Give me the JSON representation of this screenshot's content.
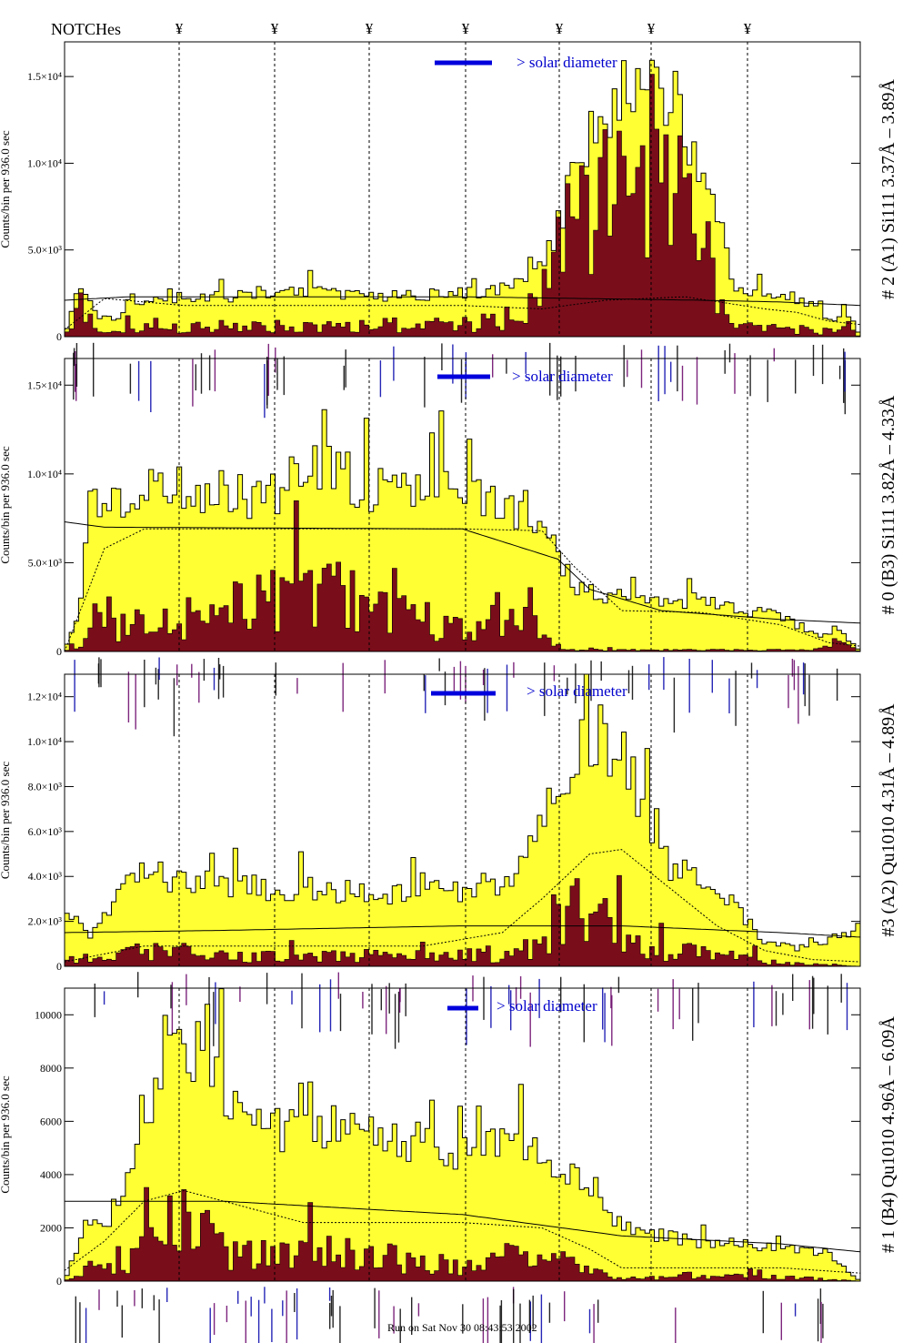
{
  "header": {
    "notches_label": "NOTCHes",
    "notch_symbol": "¥"
  },
  "footer": {
    "run_text": "Run on Sat Nov 30 08:43:53 2002"
  },
  "style": {
    "fill_total": "#ffff33",
    "fill_subset": "#7a0d1a",
    "solar_bar": "#0000dd",
    "solar_text": "#0000cc",
    "annotation_dark": "#000000",
    "annotation_blue": "#0000aa",
    "annotation_purple": "#660066"
  },
  "chart_data": [
    {
      "type": "area",
      "ylabel": "Counts/bin per 936.0 sec",
      "side_label": "# 2 (A1) Si111 3.37Å – 3.89Å",
      "solar_label": "> solar diameter",
      "ylim": [
        0,
        17000
      ],
      "ytick_values": [
        0,
        5000,
        10000,
        15000
      ],
      "ytick_labels": [
        "0",
        "5.0×10³",
        "1.0×10⁴",
        "1.5×10⁴"
      ],
      "series": [
        {
          "knots": [
            [
              0,
              0
            ],
            [
              2,
              3000
            ],
            [
              4,
              1200
            ],
            [
              7,
              900
            ],
            [
              8,
              2200
            ],
            [
              20,
              2300
            ],
            [
              30,
              2600
            ],
            [
              40,
              2400
            ],
            [
              48,
              2500
            ],
            [
              55,
              2800
            ],
            [
              60,
              4000
            ],
            [
              63,
              8000
            ],
            [
              66,
              12000
            ],
            [
              70,
              14000
            ],
            [
              74,
              14200
            ],
            [
              78,
              12500
            ],
            [
              82,
              8000
            ],
            [
              84,
              2600
            ],
            [
              88,
              2500
            ],
            [
              93,
              2200
            ],
            [
              97,
              800
            ],
            [
              98,
              1800
            ],
            [
              100,
              0
            ]
          ]
        },
        {
          "knots": [
            [
              0,
              0
            ],
            [
              2,
              2000
            ],
            [
              4,
              400
            ],
            [
              7,
              300
            ],
            [
              8,
              600
            ],
            [
              30,
              800
            ],
            [
              50,
              900
            ],
            [
              56,
              1200
            ],
            [
              58,
              2000
            ],
            [
              62,
              7000
            ],
            [
              66,
              10500
            ],
            [
              70,
              11500
            ],
            [
              74,
              11000
            ],
            [
              78,
              9000
            ],
            [
              82,
              4000
            ],
            [
              84,
              700
            ],
            [
              94,
              500
            ],
            [
              97,
              300
            ],
            [
              98,
              1000
            ],
            [
              100,
              0
            ]
          ]
        },
        {
          "knots": [
            [
              0,
              400
            ],
            [
              5,
              2200
            ],
            [
              15,
              1800
            ],
            [
              30,
              1800
            ],
            [
              50,
              1800
            ],
            [
              60,
              1600
            ],
            [
              68,
              2100
            ],
            [
              78,
              2300
            ],
            [
              88,
              1600
            ],
            [
              92,
              1400
            ],
            [
              96,
              900
            ],
            [
              100,
              700
            ]
          ]
        },
        {
          "knots": [
            [
              0,
              2100
            ],
            [
              8,
              2300
            ],
            [
              20,
              2300
            ],
            [
              50,
              2300
            ],
            [
              80,
              2100
            ],
            [
              90,
              2000
            ],
            [
              100,
              1800
            ]
          ]
        }
      ]
    },
    {
      "type": "area",
      "ylabel": "Counts/bin per 936.0 sec",
      "side_label": "# 0 (B3) Si111 3.82Å – 4.33Å",
      "solar_label": "> solar diameter",
      "ylim": [
        0,
        16500
      ],
      "ytick_values": [
        0,
        5000,
        10000,
        15000
      ],
      "ytick_labels": [
        "0",
        "5.0×10³",
        "1.0×10⁴",
        "1.5×10⁴"
      ],
      "series": [
        {
          "knots": [
            [
              0,
              0
            ],
            [
              2,
              2500
            ],
            [
              3,
              9000
            ],
            [
              5,
              8000
            ],
            [
              12,
              9500
            ],
            [
              25,
              9000
            ],
            [
              33,
              10500
            ],
            [
              40,
              9000
            ],
            [
              45,
              9500
            ],
            [
              50,
              9000
            ],
            [
              55,
              8500
            ],
            [
              60,
              7800
            ],
            [
              64,
              3500
            ],
            [
              70,
              3200
            ],
            [
              80,
              2800
            ],
            [
              90,
              2000
            ],
            [
              95,
              800
            ],
            [
              97,
              1400
            ],
            [
              100,
              0
            ]
          ]
        },
        {
          "knots": [
            [
              0,
              0
            ],
            [
              2,
              800
            ],
            [
              3,
              2500
            ],
            [
              5,
              1500
            ],
            [
              15,
              2300
            ],
            [
              25,
              3500
            ],
            [
              33,
              4500
            ],
            [
              40,
              3000
            ],
            [
              45,
              2400
            ],
            [
              50,
              2000
            ],
            [
              58,
              2000
            ],
            [
              62,
              400
            ],
            [
              64,
              100
            ],
            [
              94,
              100
            ],
            [
              97,
              900
            ],
            [
              100,
              0
            ]
          ]
        },
        {
          "knots": [
            [
              0,
              0
            ],
            [
              5,
              5800
            ],
            [
              10,
              6900
            ],
            [
              30,
              6900
            ],
            [
              50,
              6900
            ],
            [
              60,
              6800
            ],
            [
              64,
              4800
            ],
            [
              70,
              2300
            ],
            [
              80,
              2200
            ],
            [
              90,
              1500
            ],
            [
              96,
              500
            ],
            [
              100,
              300
            ]
          ]
        },
        {
          "knots": [
            [
              0,
              7300
            ],
            [
              5,
              7000
            ],
            [
              50,
              6900
            ],
            [
              62,
              5200
            ],
            [
              66,
              3500
            ],
            [
              75,
              2300
            ],
            [
              90,
              1800
            ],
            [
              100,
              1600
            ]
          ]
        }
      ]
    },
    {
      "type": "area",
      "ylabel": "Counts/bin per 936.0 sec",
      "side_label": "#3 (A2) Qu1010 4.31Å – 4.89Å",
      "solar_label": "> solar diameter",
      "ylim": [
        0,
        13000
      ],
      "ytick_values": [
        0,
        2000,
        4000,
        6000,
        8000,
        10000,
        12000
      ],
      "ytick_labels": [
        "0",
        "2.0×10³",
        "4.0×10³",
        "6.0×10³",
        "8.0×10³",
        "1.0×10⁴",
        "1.2×10⁴"
      ],
      "series": [
        {
          "knots": [
            [
              0,
              3000
            ],
            [
              3,
              1200
            ],
            [
              6,
              3000
            ],
            [
              10,
              4200
            ],
            [
              20,
              3600
            ],
            [
              30,
              3500
            ],
            [
              40,
              3300
            ],
            [
              50,
              3500
            ],
            [
              55,
              3600
            ],
            [
              58,
              4800
            ],
            [
              62,
              8000
            ],
            [
              65,
              11000
            ],
            [
              68,
              10500
            ],
            [
              70,
              9500
            ],
            [
              73,
              7000
            ],
            [
              76,
              4500
            ],
            [
              80,
              3800
            ],
            [
              84,
              2800
            ],
            [
              88,
              1200
            ],
            [
              92,
              800
            ],
            [
              95,
              1000
            ],
            [
              100,
              1800
            ]
          ]
        },
        {
          "knots": [
            [
              0,
              200
            ],
            [
              8,
              900
            ],
            [
              15,
              800
            ],
            [
              30,
              500
            ],
            [
              45,
              700
            ],
            [
              55,
              600
            ],
            [
              60,
              1500
            ],
            [
              63,
              3500
            ],
            [
              66,
              2800
            ],
            [
              70,
              2000
            ],
            [
              73,
              900
            ],
            [
              80,
              800
            ],
            [
              85,
              500
            ],
            [
              90,
              200
            ],
            [
              100,
              0
            ]
          ]
        },
        {
          "knots": [
            [
              0,
              200
            ],
            [
              10,
              900
            ],
            [
              25,
              900
            ],
            [
              45,
              900
            ],
            [
              55,
              1500
            ],
            [
              60,
              3000
            ],
            [
              66,
              5000
            ],
            [
              70,
              5200
            ],
            [
              76,
              3500
            ],
            [
              82,
              1800
            ],
            [
              88,
              700
            ],
            [
              94,
              300
            ],
            [
              100,
              200
            ]
          ]
        },
        {
          "knots": [
            [
              0,
              1500
            ],
            [
              20,
              1600
            ],
            [
              50,
              1800
            ],
            [
              70,
              1800
            ],
            [
              90,
              1500
            ],
            [
              100,
              1300
            ]
          ]
        }
      ]
    },
    {
      "type": "area",
      "ylabel": "Counts/bin per 936.0 sec",
      "side_label": "# 1 (B4) Qu1010 4.96Å – 6.09Å",
      "solar_label": "> solar diameter",
      "ylim": [
        0,
        11000
      ],
      "ytick_values": [
        0,
        2000,
        4000,
        6000,
        8000,
        10000
      ],
      "ytick_labels": [
        "0",
        "2000",
        "4000",
        "6000",
        "8000",
        "10000"
      ],
      "series": [
        {
          "knots": [
            [
              0,
              0
            ],
            [
              3,
              2500
            ],
            [
              6,
              2000
            ],
            [
              9,
              5000
            ],
            [
              12,
              8000
            ],
            [
              15,
              9200
            ],
            [
              18,
              8500
            ],
            [
              22,
              6500
            ],
            [
              28,
              5800
            ],
            [
              35,
              6000
            ],
            [
              42,
              5500
            ],
            [
              50,
              5000
            ],
            [
              55,
              5300
            ],
            [
              58,
              5000
            ],
            [
              62,
              4500
            ],
            [
              66,
              3800
            ],
            [
              70,
              2000
            ],
            [
              80,
              1500
            ],
            [
              90,
              1300
            ],
            [
              96,
              1100
            ],
            [
              100,
              0
            ]
          ]
        },
        {
          "knots": [
            [
              0,
              0
            ],
            [
              3,
              600
            ],
            [
              6,
              400
            ],
            [
              10,
              1500
            ],
            [
              14,
              3000
            ],
            [
              17,
              2400
            ],
            [
              21,
              1300
            ],
            [
              28,
              1200
            ],
            [
              35,
              1500
            ],
            [
              42,
              1000
            ],
            [
              50,
              800
            ],
            [
              55,
              1400
            ],
            [
              60,
              1200
            ],
            [
              65,
              600
            ],
            [
              70,
              100
            ],
            [
              80,
              300
            ],
            [
              90,
              200
            ],
            [
              100,
              0
            ]
          ]
        },
        {
          "knots": [
            [
              0,
              400
            ],
            [
              5,
              1500
            ],
            [
              10,
              3000
            ],
            [
              15,
              3400
            ],
            [
              20,
              3000
            ],
            [
              30,
              2200
            ],
            [
              40,
              2200
            ],
            [
              50,
              2200
            ],
            [
              60,
              2000
            ],
            [
              66,
              1200
            ],
            [
              70,
              500
            ],
            [
              90,
              500
            ],
            [
              100,
              300
            ]
          ]
        },
        {
          "knots": [
            [
              0,
              3000
            ],
            [
              20,
              3000
            ],
            [
              50,
              2500
            ],
            [
              70,
              1700
            ],
            [
              90,
              1400
            ],
            [
              100,
              1100
            ]
          ]
        }
      ]
    }
  ]
}
